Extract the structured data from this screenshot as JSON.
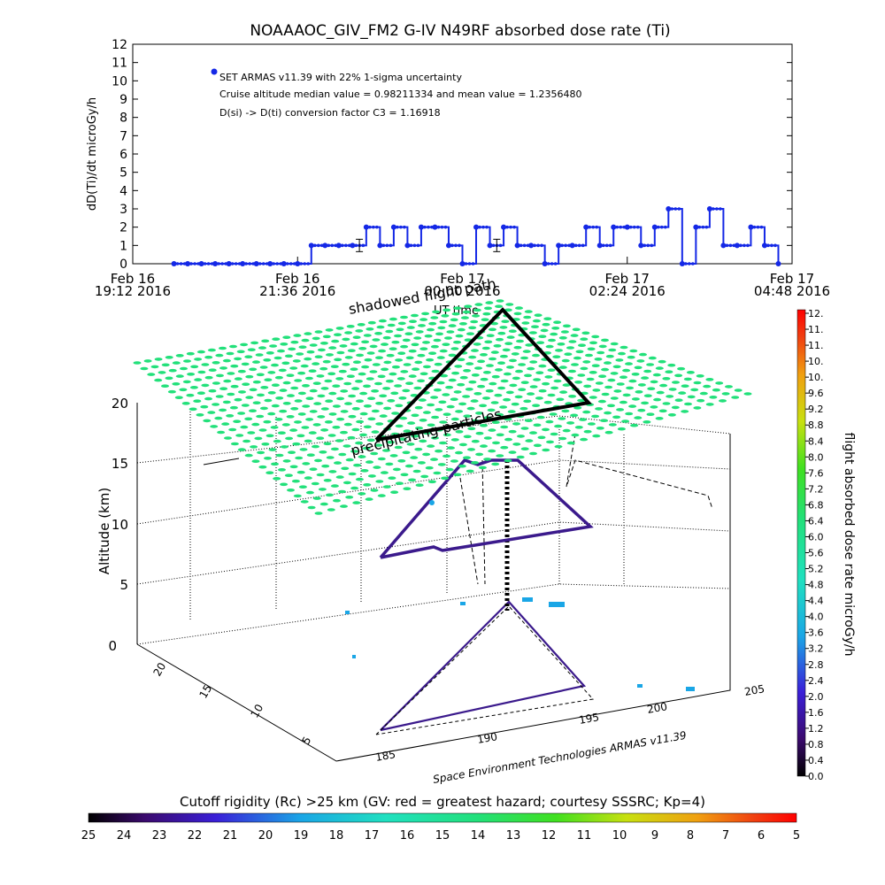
{
  "chart_data": [
    {
      "type": "line",
      "title": "NOAAAOC_GIV_FM2 G-IV   N49RF  absorbed dose rate (Ti)",
      "ylabel": "dD(Ti)/dt microGy/h",
      "xlabel": "UT time",
      "ylim": [
        0,
        12
      ],
      "yticks": [
        "0",
        "1",
        "2",
        "3",
        "4",
        "5",
        "6",
        "7",
        "8",
        "9",
        "10",
        "11",
        "12"
      ],
      "xticks": [
        {
          "date": "Feb 16",
          "time": "19:12 2016"
        },
        {
          "date": "Feb 16",
          "time": "21:36 2016"
        },
        {
          "date": "Feb 17",
          "time": "00:00 2016"
        },
        {
          "date": "Feb 17",
          "time": "02:24 2016"
        },
        {
          "date": "Feb 17",
          "time": "04:48 2016"
        }
      ],
      "xlim_hours": [
        19.2,
        28.8
      ],
      "legend": [
        "SET ARMAS v11.39 with 22% 1-sigma uncertainty",
        "Cruise altitude median value = 0.98211334 and mean value = 1.2356480",
        "D(si) -> D(ti) conversion factor C3 = 1.16918"
      ],
      "series": [
        {
          "color": "#1428e6",
          "x_hours": [
            19.8,
            20.0,
            20.2,
            20.4,
            20.6,
            20.8,
            21.0,
            21.2,
            21.4,
            21.6,
            21.8,
            22.0,
            22.2,
            22.4,
            22.6,
            22.8,
            23.0,
            23.2,
            23.4,
            23.6,
            23.8,
            24.0,
            24.2,
            24.4,
            24.6,
            24.8,
            25.0,
            25.2,
            25.4,
            25.6,
            25.8,
            26.0,
            26.2,
            26.4,
            26.6,
            26.8,
            27.0,
            27.2,
            27.4,
            27.6,
            27.8,
            28.0,
            28.2,
            28.4,
            28.6
          ],
          "values": [
            0,
            0,
            0,
            0,
            0,
            0,
            0,
            0,
            0,
            0,
            1,
            1,
            1,
            1,
            2,
            1,
            2,
            1,
            2,
            2,
            1,
            0,
            2,
            1,
            2,
            1,
            1,
            0,
            1,
            1,
            2,
            1,
            2,
            2,
            1,
            2,
            3,
            0,
            2,
            3,
            1,
            1,
            2,
            1,
            0
          ]
        }
      ],
      "error_bar_hours": [
        22.5,
        24.5
      ]
    },
    {
      "type": "scatter",
      "ylabel": "Altitude (km)",
      "z_ticks": [
        "0",
        "5",
        "10",
        "15",
        "20"
      ],
      "lat_ticks": [
        "5",
        "10",
        "15",
        "20"
      ],
      "lon_ticks": [
        "185",
        "190",
        "195",
        "200",
        "205"
      ],
      "annotations": [
        "shadowed flight path",
        "precipitating particles"
      ],
      "credit": "Space Environment Technologies ARMAS v11.39",
      "colorbar": {
        "label": "flight absorbed dose rate microGy/h",
        "ticks": [
          "0.0",
          "0.4",
          "0.8",
          "1.2",
          "1.6",
          "2.0",
          "2.4",
          "2.8",
          "3.2",
          "3.6",
          "4.0",
          "4.4",
          "4.8",
          "5.2",
          "5.6",
          "6.0",
          "6.4",
          "6.8",
          "7.2",
          "7.6",
          "8.0",
          "8.4",
          "8.8",
          "9.2",
          "9.6",
          "10.",
          "10.",
          "11.",
          "11.",
          "12."
        ]
      },
      "bottom_colorbar": {
        "label": "Cutoff rigidity (Rc) >25 km (GV: red = greatest hazard; courtesy SSSRC; Kp=4)",
        "ticks": [
          "25",
          "24",
          "23",
          "22",
          "21",
          "20",
          "19",
          "18",
          "17",
          "16",
          "15",
          "14",
          "13",
          "12",
          "11",
          "10",
          "9",
          "8",
          "7",
          "6",
          "5"
        ]
      },
      "flight_path_lonlat": [
        [
          186,
          3
        ],
        [
          190,
          22
        ],
        [
          198,
          4
        ],
        [
          186,
          3
        ]
      ],
      "cruise_altitude_km": 13
    }
  ]
}
